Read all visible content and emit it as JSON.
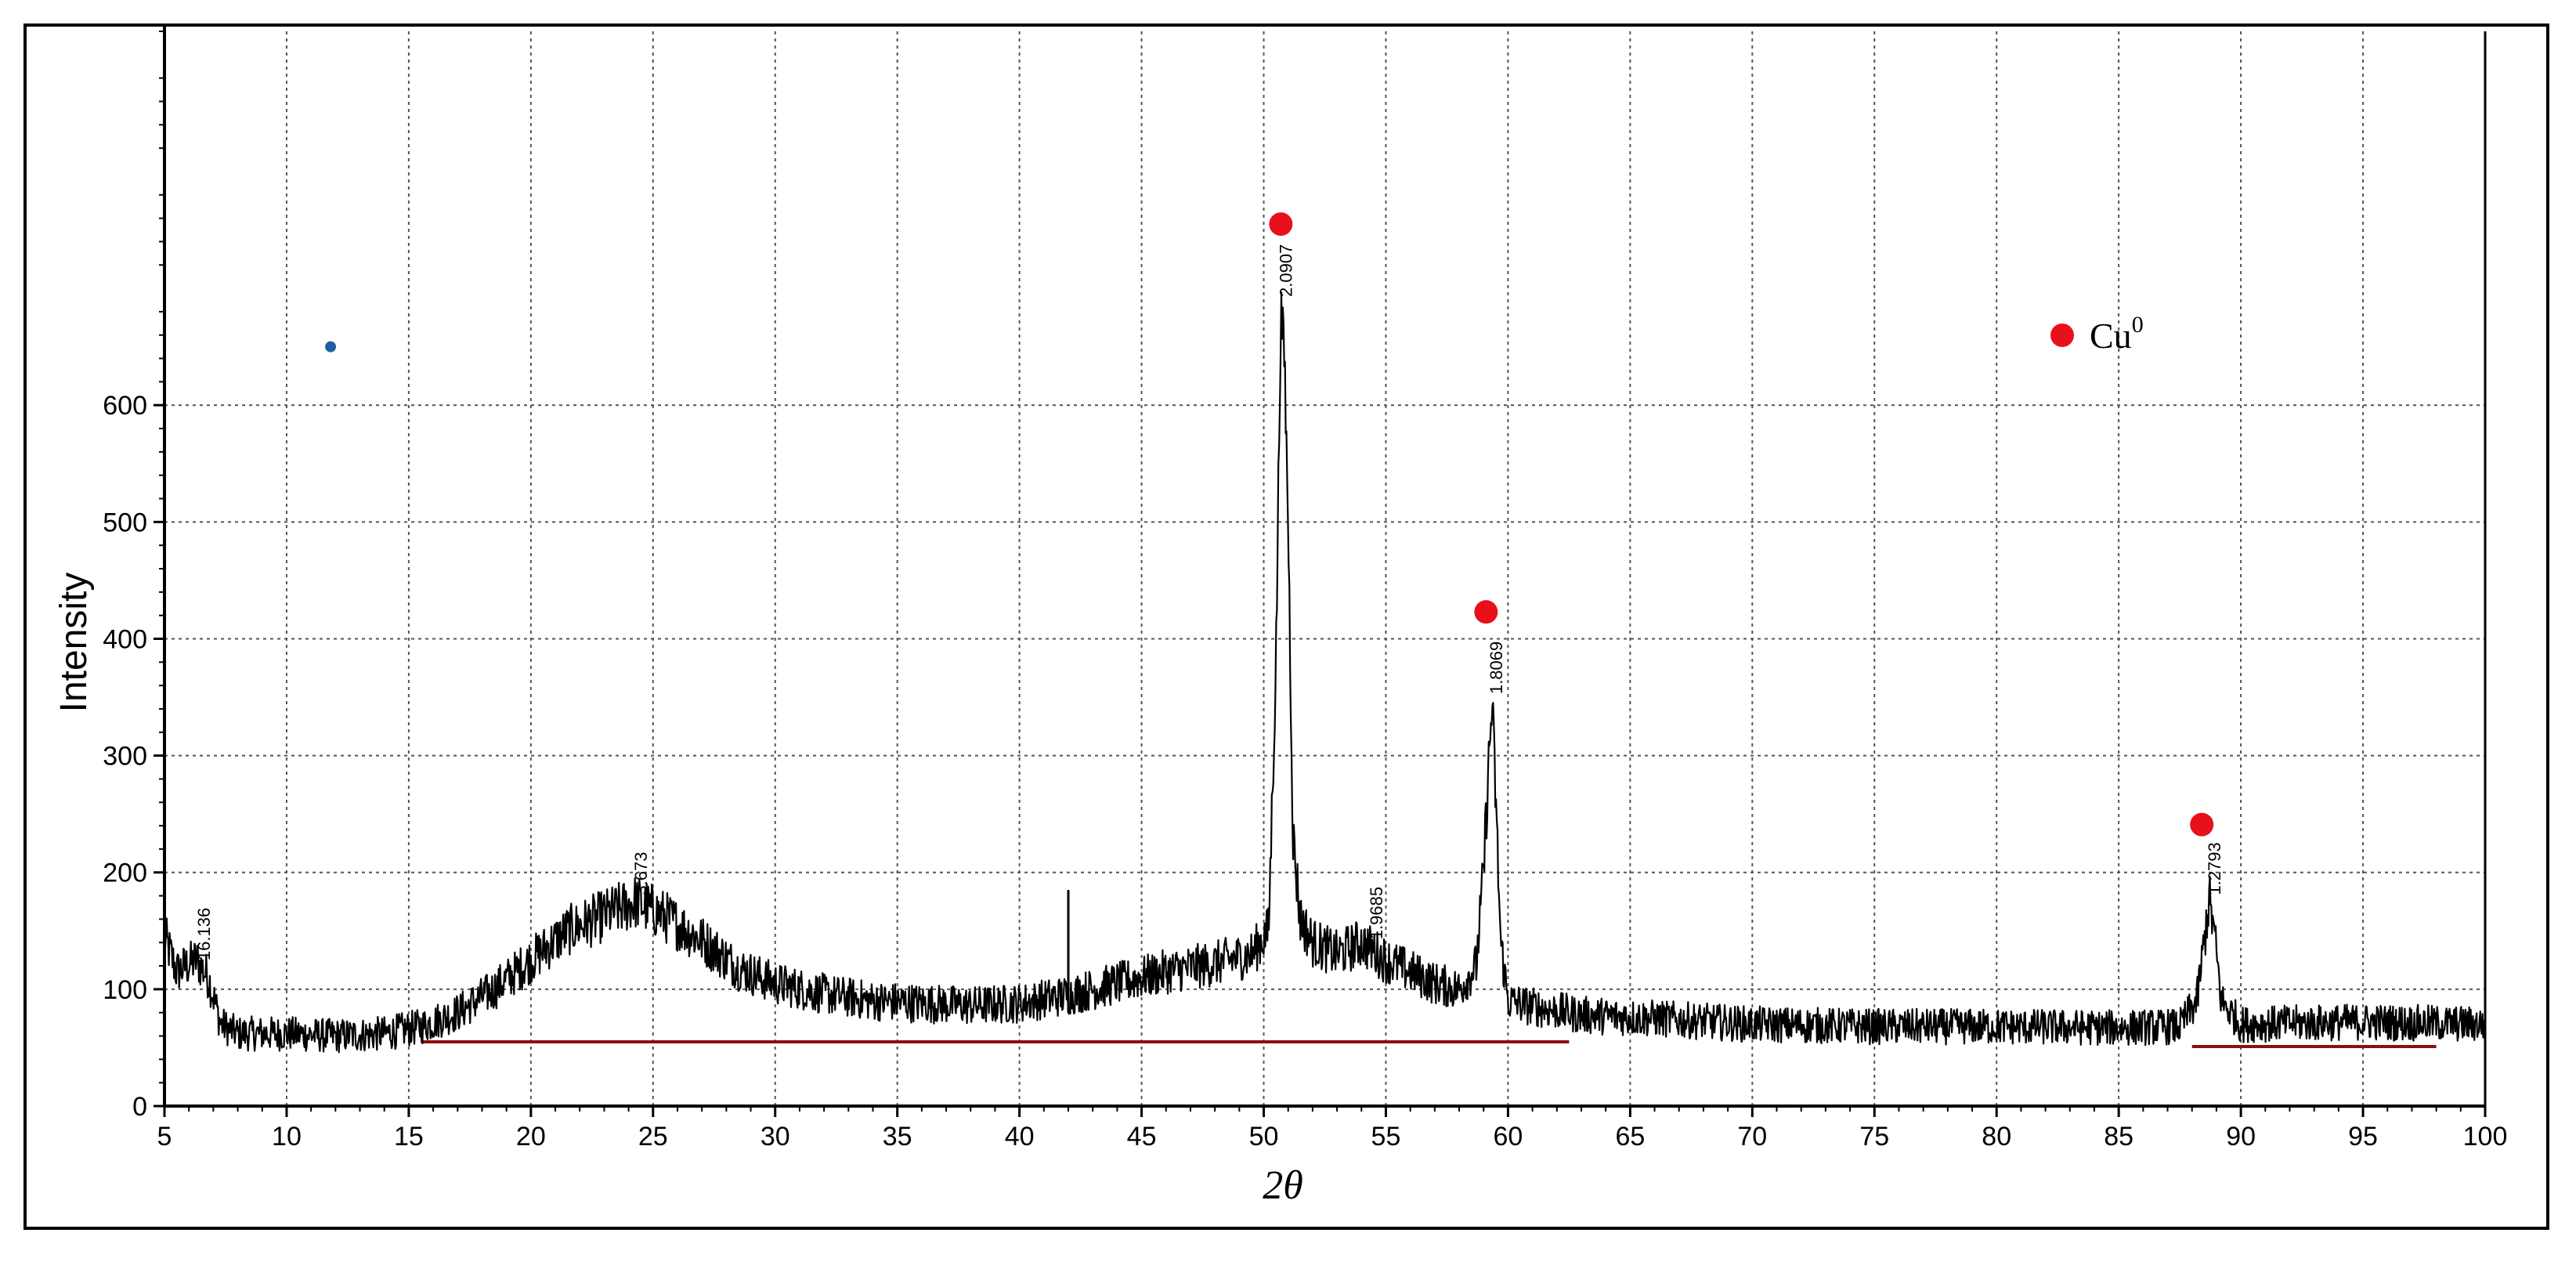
{
  "chart_data": {
    "type": "line",
    "xlabel": "2θ",
    "ylabel": "Intensity",
    "xlim": [
      5,
      100
    ],
    "ylim": [
      0,
      920
    ],
    "x_ticks": [
      5,
      10,
      15,
      20,
      25,
      30,
      35,
      40,
      45,
      50,
      55,
      60,
      65,
      70,
      75,
      80,
      85,
      90,
      95,
      100
    ],
    "y_ticks": [
      0,
      100,
      200,
      300,
      400,
      500,
      600
    ],
    "grid": true,
    "colors": {
      "line": "#000000",
      "marker": "#e8101a",
      "baseline": "#8b1010",
      "stray_dot": "#1f5fa0"
    },
    "profile_points": [
      [
        5.0,
        145
      ],
      [
        5.5,
        115
      ],
      [
        6.3,
        125
      ],
      [
        6.8,
        110
      ],
      [
        7.3,
        70
      ],
      [
        8,
        62
      ],
      [
        10,
        62
      ],
      [
        12,
        60
      ],
      [
        14,
        62
      ],
      [
        15.5,
        68
      ],
      [
        17,
        80
      ],
      [
        18.5,
        100
      ],
      [
        20,
        125
      ],
      [
        21.5,
        150
      ],
      [
        23,
        163
      ],
      [
        24.3,
        175
      ],
      [
        25.5,
        162
      ],
      [
        27,
        142
      ],
      [
        28.5,
        118
      ],
      [
        30,
        105
      ],
      [
        32,
        96
      ],
      [
        34,
        90
      ],
      [
        36,
        88
      ],
      [
        38,
        86
      ],
      [
        40,
        88
      ],
      [
        42,
        95
      ],
      [
        44,
        105
      ],
      [
        46,
        115
      ],
      [
        48,
        122
      ],
      [
        49.5,
        130
      ],
      [
        50.2,
        150
      ],
      [
        50.5,
        380
      ],
      [
        50.7,
        680
      ],
      [
        50.85,
        640
      ],
      [
        51,
        500
      ],
      [
        51.2,
        230
      ],
      [
        51.5,
        160
      ],
      [
        52,
        140
      ],
      [
        53,
        130
      ],
      [
        54,
        140
      ],
      [
        55,
        125
      ],
      [
        56,
        115
      ],
      [
        57,
        105
      ],
      [
        58,
        100
      ],
      [
        58.7,
        120
      ],
      [
        59.0,
        200
      ],
      [
        59.2,
        290
      ],
      [
        59.35,
        345
      ],
      [
        59.5,
        260
      ],
      [
        59.7,
        140
      ],
      [
        60,
        90
      ],
      [
        61,
        85
      ],
      [
        63,
        78
      ],
      [
        66,
        75
      ],
      [
        70,
        70
      ],
      [
        75,
        68
      ],
      [
        80,
        68
      ],
      [
        85,
        67
      ],
      [
        87.5,
        68
      ],
      [
        88.2,
        90
      ],
      [
        88.5,
        140
      ],
      [
        88.7,
        178
      ],
      [
        88.9,
        150
      ],
      [
        89.2,
        90
      ],
      [
        90,
        70
      ],
      [
        95,
        72
      ],
      [
        100,
        70
      ]
    ],
    "spike": {
      "x": 42.0,
      "y": 185
    },
    "baseline_segments": [
      [
        15.5,
        62.5,
        55
      ],
      [
        88,
        98,
        51
      ]
    ],
    "peak_labels": [
      {
        "x": 6.6,
        "y": 122,
        "text": "16.136"
      },
      {
        "x": 24.5,
        "y": 178,
        "text": "3.673"
      },
      {
        "x": 50.9,
        "y": 690,
        "text": "2.0907"
      },
      {
        "x": 54.6,
        "y": 140,
        "text": "1.9685"
      },
      {
        "x": 59.5,
        "y": 350,
        "text": "1.8069"
      },
      {
        "x": 88.9,
        "y": 178,
        "text": "1.2793"
      }
    ],
    "markers": [
      {
        "x": 50.7,
        "y": 755
      },
      {
        "x": 59.1,
        "y": 423
      },
      {
        "x": 88.4,
        "y": 241
      }
    ],
    "stray_dot": {
      "x": 11.8,
      "y": 650
    },
    "legend": {
      "label": "Cu",
      "superscript": "0",
      "position": "top-right"
    }
  }
}
